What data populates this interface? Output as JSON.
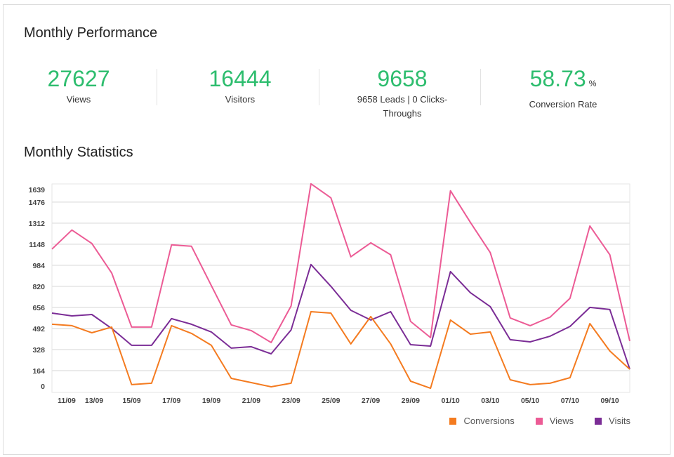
{
  "performance": {
    "title": "Monthly Performance",
    "kpis": [
      {
        "value": "27627",
        "unit": "",
        "label": "Views"
      },
      {
        "value": "16444",
        "unit": "",
        "label": "Visitors"
      },
      {
        "value": "9658",
        "unit": "",
        "label": "9658 Leads | 0 Clicks-Throughs"
      },
      {
        "value": "58.73",
        "unit": "%",
        "label": "Conversion Rate"
      }
    ],
    "accent_color": "#2dbd6e"
  },
  "statistics": {
    "title": "Monthly Statistics"
  },
  "chart_data": {
    "type": "line",
    "title": "Monthly Statistics",
    "xlabel": "",
    "ylabel": "",
    "ylim": [
      0,
      1639
    ],
    "yticks": [
      0,
      164,
      328,
      492,
      656,
      820,
      984,
      1148,
      1312,
      1476,
      1639
    ],
    "grid": true,
    "legend_position": "bottom-right",
    "x": [
      "11/09",
      "12/09",
      "13/09",
      "14/09",
      "15/09",
      "16/09",
      "17/09",
      "18/09",
      "19/09",
      "20/09",
      "21/09",
      "22/09",
      "23/09",
      "24/09",
      "25/09",
      "26/09",
      "27/09",
      "28/09",
      "29/09",
      "30/09",
      "01/10",
      "02/10",
      "03/10",
      "04/10",
      "05/10",
      "06/10",
      "07/10",
      "08/10",
      "09/10",
      "10/10"
    ],
    "xtick_labels": [
      "11/09",
      "13/09",
      "15/09",
      "17/09",
      "19/09",
      "21/09",
      "23/09",
      "25/09",
      "27/09",
      "29/09",
      "01/10",
      "03/10",
      "05/10",
      "07/10",
      "09/10"
    ],
    "series": [
      {
        "name": "Conversions",
        "color": "#f47b20",
        "values": [
          525,
          514,
          459,
          503,
          55,
          66,
          514,
          454,
          361,
          104,
          71,
          38,
          66,
          623,
          612,
          372,
          585,
          372,
          82,
          27,
          558,
          448,
          465,
          93,
          55,
          66,
          109,
          530,
          317,
          175
        ]
      },
      {
        "name": "Views",
        "color": "#ec5b95",
        "values": [
          1110,
          1258,
          1154,
          924,
          503,
          503,
          1143,
          1132,
          826,
          520,
          476,
          383,
          667,
          1618,
          1509,
          1050,
          1159,
          1066,
          547,
          421,
          1564,
          1318,
          1083,
          574,
          514,
          580,
          727,
          1290,
          1066,
          394
        ]
      },
      {
        "name": "Visits",
        "color": "#7b2d96",
        "values": [
          612,
          590,
          601,
          492,
          361,
          361,
          569,
          525,
          465,
          339,
          350,
          295,
          481,
          990,
          820,
          634,
          558,
          623,
          366,
          355,
          935,
          771,
          662,
          405,
          388,
          432,
          508,
          656,
          640,
          175
        ]
      }
    ]
  }
}
